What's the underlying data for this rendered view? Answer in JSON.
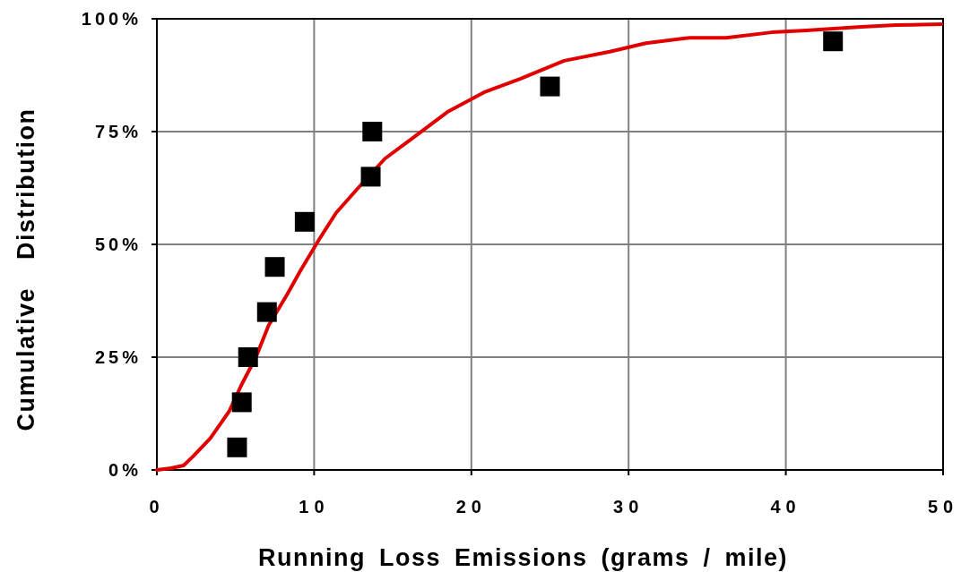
{
  "chart_data": {
    "type": "scatter",
    "xlabel": "Running Loss Emissions (grams / mile)",
    "ylabel": "Cumulative Distribution",
    "xlim": [
      0,
      50
    ],
    "ylim": [
      0,
      100
    ],
    "xticks": [
      0,
      10,
      20,
      30,
      40,
      50
    ],
    "yticks": [
      {
        "value": 0,
        "label": "0%"
      },
      {
        "value": 25,
        "label": "25%"
      },
      {
        "value": 50,
        "label": "50%"
      },
      {
        "value": 75,
        "label": "75%"
      },
      {
        "value": 100,
        "label": "100%"
      }
    ],
    "grid": true,
    "series": [
      {
        "type": "line",
        "color": "#e00000",
        "marker": "none",
        "x": [
          0,
          0.9,
          1.7,
          2.3,
          3.4,
          4.6,
          5.4,
          6.3,
          7.1,
          8.3,
          9.1,
          10.3,
          11.4,
          12.8,
          14.5,
          16.2,
          18.5,
          20.8,
          23.1,
          25.9,
          28.8,
          31.1,
          33.9,
          36.2,
          39.1,
          41.3,
          44.8,
          47,
          49.9
        ],
        "values": [
          0,
          0.4,
          1,
          3,
          7,
          13,
          19,
          25,
          32,
          39,
          44,
          51,
          57,
          62.5,
          69,
          73.4,
          79.4,
          83.7,
          86.7,
          90.7,
          92.7,
          94.6,
          95.8,
          95.8,
          97,
          97.4,
          98.2,
          98.6,
          98.8
        ]
      },
      {
        "color": "#000000",
        "marker": "square",
        "x": [
          5.1,
          5.4,
          5.8,
          7,
          7.5,
          9.4,
          13.6,
          13.7,
          25,
          43
        ],
        "values": [
          5,
          15,
          25,
          35,
          45,
          55,
          65,
          75,
          85,
          95
        ]
      }
    ]
  }
}
